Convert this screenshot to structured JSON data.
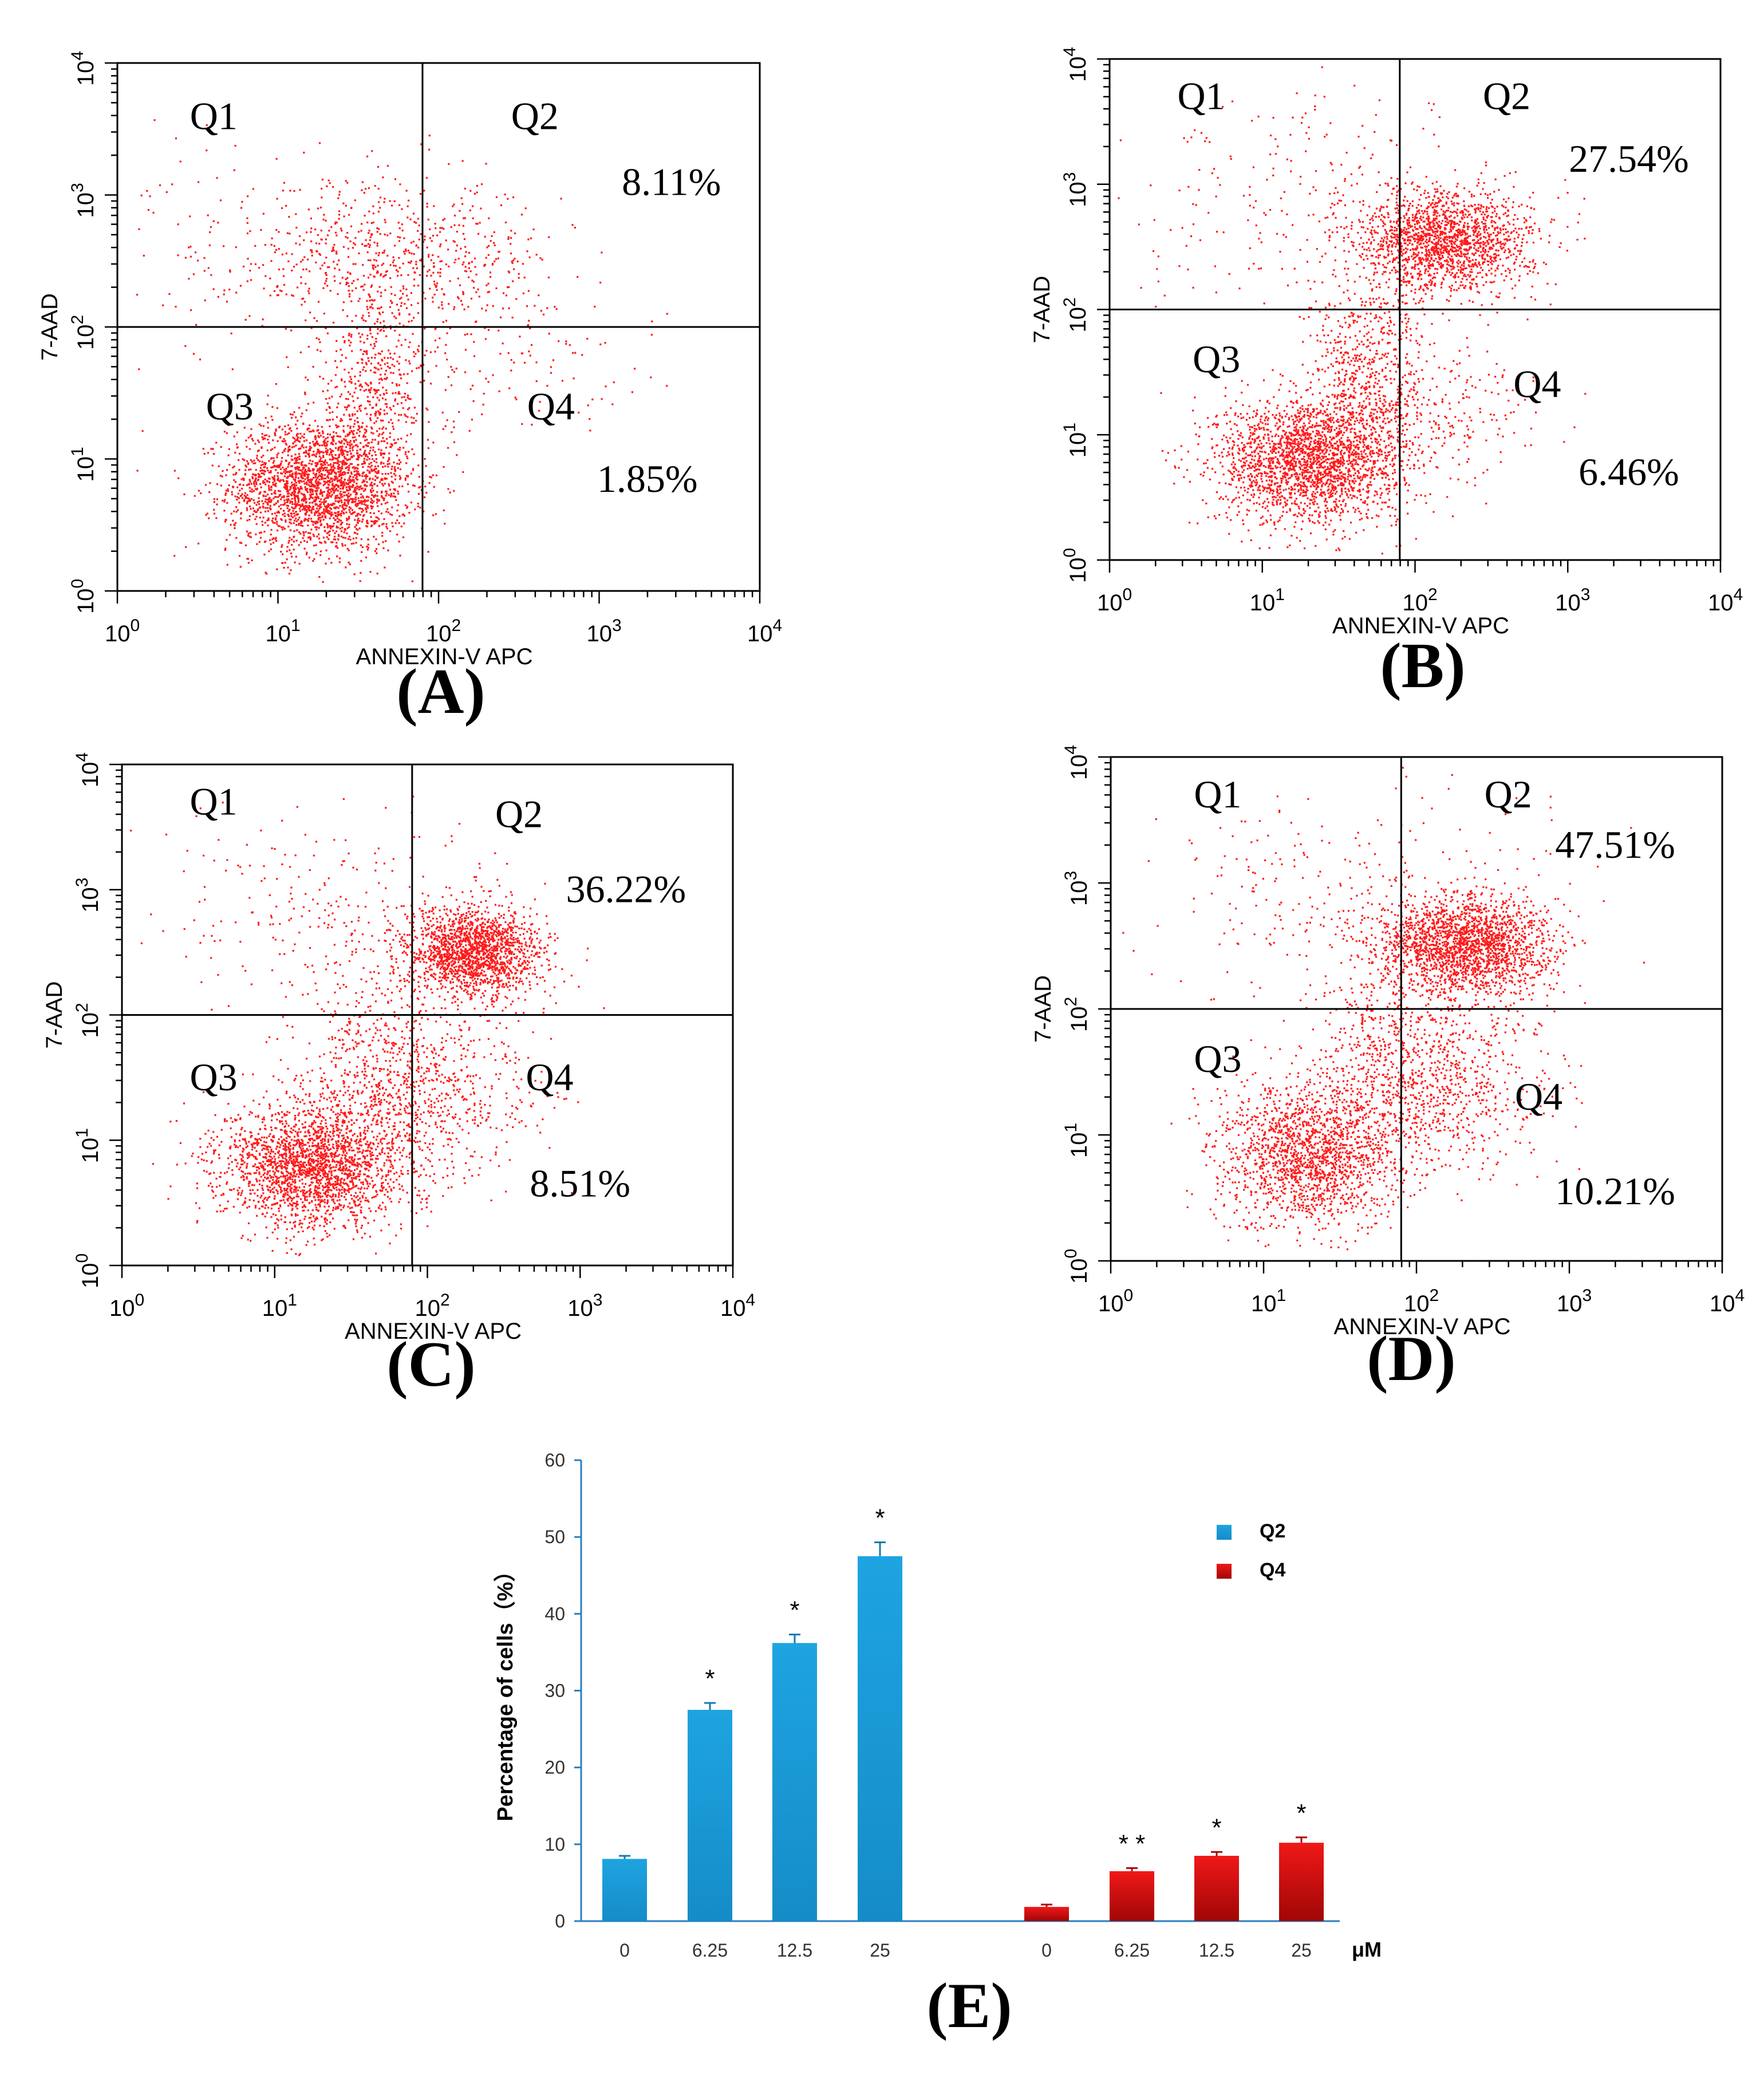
{
  "colors": {
    "dots": "#ff1a1a",
    "q2": "#1a9ad6",
    "q4": "#e01010",
    "axis": "#000000"
  },
  "flow_panels": [
    {
      "panel_label": "(A)",
      "x_axis_label": "ANNEXIN-V APC",
      "y_axis_label": "7-AAD",
      "quadrants": [
        "Q1",
        "Q2",
        "Q3",
        "Q4"
      ],
      "q2_percent": "8.11%",
      "q4_percent": "1.85%",
      "x_ticks": [
        "0",
        "1",
        "2",
        "3",
        "4"
      ],
      "y_ticks": [
        "0",
        "1",
        "2",
        "3",
        "4"
      ],
      "tick_base": "10"
    },
    {
      "panel_label": "(B)",
      "x_axis_label": "ANNEXIN-V APC",
      "y_axis_label": "7-AAD",
      "quadrants": [
        "Q1",
        "Q2",
        "Q3",
        "Q4"
      ],
      "q2_percent": "27.54%",
      "q4_percent": "6.46%",
      "x_ticks": [
        "0",
        "1",
        "2",
        "3",
        "4"
      ],
      "y_ticks": [
        "0",
        "1",
        "2",
        "3",
        "4"
      ],
      "tick_base": "10"
    },
    {
      "panel_label": "(C)",
      "x_axis_label": "ANNEXIN-V APC",
      "y_axis_label": "7-AAD",
      "quadrants": [
        "Q1",
        "Q2",
        "Q3",
        "Q4"
      ],
      "q2_percent": "36.22%",
      "q4_percent": "8.51%",
      "x_ticks": [
        "0",
        "1",
        "2",
        "3",
        "4"
      ],
      "y_ticks": [
        "0",
        "1",
        "2",
        "3",
        "4"
      ],
      "tick_base": "10"
    },
    {
      "panel_label": "(D)",
      "x_axis_label": "ANNEXIN-V APC",
      "y_axis_label": "7-AAD",
      "quadrants": [
        "Q1",
        "Q2",
        "Q3",
        "Q4"
      ],
      "q2_percent": "47.51%",
      "q4_percent": "10.21%",
      "x_ticks": [
        "0",
        "1",
        "2",
        "3",
        "4"
      ],
      "y_ticks": [
        "0",
        "1",
        "2",
        "3",
        "4"
      ],
      "tick_base": "10"
    }
  ],
  "chart_data": {
    "type": "bar",
    "panel_label": "(E)",
    "ylabel": "Percentage of cells（%）",
    "unit_label": "μM",
    "ylim": [
      0,
      60
    ],
    "y_ticks": [
      0,
      10,
      20,
      30,
      40,
      50,
      60
    ],
    "grid": false,
    "legend_position": "top-right",
    "series": [
      {
        "name": "Q2",
        "categories": [
          "0",
          "6.25",
          "12.5",
          "25"
        ],
        "values": [
          8.1,
          27.5,
          36.2,
          47.5
        ],
        "errors": [
          0.4,
          0.9,
          1.1,
          1.8
        ],
        "significance": [
          "",
          "*",
          "*",
          "*"
        ]
      },
      {
        "name": "Q4",
        "categories": [
          "0",
          "6.25",
          "12.5",
          "25"
        ],
        "values": [
          1.85,
          6.5,
          8.5,
          10.2
        ],
        "errors": [
          0.3,
          0.4,
          0.5,
          0.7
        ],
        "significance": [
          "",
          "* *",
          "*",
          "*"
        ]
      }
    ]
  }
}
